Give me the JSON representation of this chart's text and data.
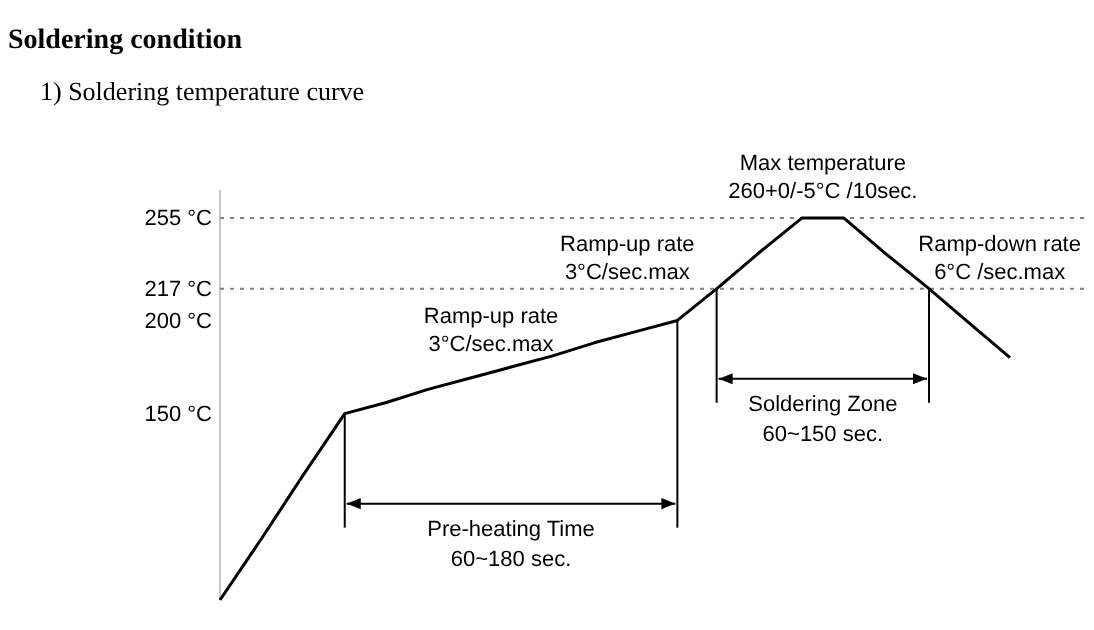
{
  "chart_data": {
    "type": "line",
    "title": "Soldering condition",
    "subtitle": "1) Soldering temperature curve",
    "categories": [
      null,
      null,
      null,
      null,
      null,
      null,
      null,
      null,
      null,
      null,
      null,
      null,
      null,
      null,
      null,
      null,
      null,
      null,
      null,
      null
    ],
    "series": [
      {
        "color": "#000000",
        "values": [
          50,
          83,
          117,
          150,
          156,
          163,
          169,
          175,
          181,
          188,
          194,
          200,
          218,
          237,
          255,
          255,
          236,
          218,
          199,
          180
        ]
      }
    ],
    "ylim": [
      50,
      270
    ],
    "yticks": [
      {
        "value": 150,
        "label": "150 °C"
      },
      {
        "value": 200,
        "label": "200 °C"
      },
      {
        "value": 217,
        "label": "217 °C"
      },
      {
        "value": 255,
        "label": "255 °C"
      }
    ],
    "tick_labels": "y",
    "grid": false,
    "marker": "none",
    "line_style": "solid",
    "ref_lines": [
      {
        "axis": "y",
        "value": 255,
        "color": "#808080",
        "line_style": "dotted"
      },
      {
        "axis": "y",
        "value": 217,
        "color": "#808080",
        "line_style": "dotted"
      }
    ],
    "annotations": [
      "Ramp-up rate\n3°C/sec.max",
      "Ramp-up rate\n3°C/sec.max",
      "Max temperature\n260+0/-5°C /10sec.",
      "Ramp-down rate\n6°C /sec.max",
      "Pre-heating Time\n60~180 sec.",
      "Soldering Zone\n60~150 sec."
    ]
  }
}
